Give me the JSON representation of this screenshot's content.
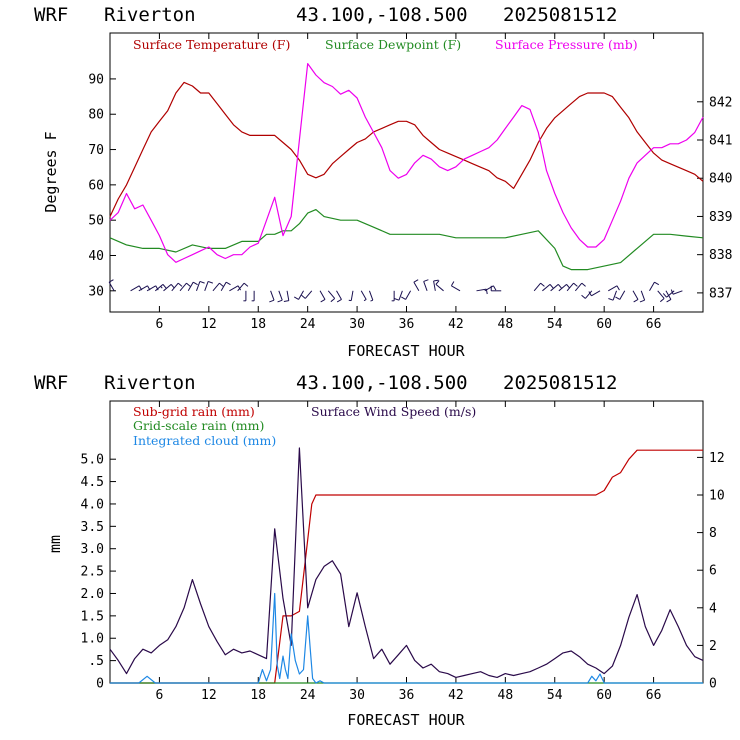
{
  "colors": {
    "temperature": "#b00000",
    "dewpoint": "#228b22",
    "pressure": "#ee00ee",
    "subgrid": "#c00000",
    "gridscale": "#228b22",
    "cloud": "#1e88e5",
    "wind": "#2a0a4a",
    "barb": "#1a1050"
  },
  "charts": {
    "top": {
      "model": "WRF",
      "station": "Riverton",
      "coords": "43.100,-108.500",
      "run": "2025081512",
      "legend": [
        "Surface Temperature (F)",
        "Surface Dewpoint (F)",
        "Surface Pressure (mb)"
      ],
      "ylabel": "Degrees F",
      "xlabel": "FORECAST HOUR"
    },
    "bottom": {
      "model": "WRF",
      "station": "Riverton",
      "coords": "43.100,-108.500",
      "run": "2025081512",
      "legend": [
        "Sub-grid rain (mm)",
        "Surface Wind Speed (m/s)",
        "Grid-scale rain (mm)",
        "Integrated cloud (mm)"
      ],
      "ylabel": "mm",
      "xlabel": "FORECAST HOUR"
    }
  },
  "chart_data": [
    {
      "type": "line",
      "xlabel": "FORECAST HOUR",
      "ylabel": "Degrees F",
      "xlim": [
        0,
        72
      ],
      "ylim_left": [
        24,
        103
      ],
      "ylim_right": [
        836.5,
        843.8
      ],
      "x_ticks": [
        6,
        12,
        18,
        24,
        30,
        36,
        42,
        48,
        54,
        60,
        66
      ],
      "y_ticks_left": [
        30,
        40,
        50,
        60,
        70,
        80,
        90
      ],
      "y_ticks_right": [
        837,
        838,
        839,
        840,
        841,
        842
      ],
      "grid": false,
      "legend_position": "top",
      "series": [
        {
          "name": "Surface Temperature (F)",
          "axis": "left",
          "x": [
            0,
            1,
            2,
            3,
            4,
            5,
            6,
            7,
            8,
            9,
            10,
            11,
            12,
            13,
            14,
            15,
            16,
            17,
            18,
            19,
            20,
            21,
            22,
            23,
            24,
            25,
            26,
            27,
            28,
            29,
            30,
            31,
            32,
            33,
            34,
            35,
            36,
            37,
            38,
            39,
            40,
            41,
            42,
            43,
            44,
            45,
            46,
            47,
            48,
            49,
            50,
            51,
            52,
            53,
            54,
            55,
            56,
            57,
            58,
            59,
            60,
            61,
            62,
            63,
            64,
            65,
            66,
            67,
            68,
            69,
            70,
            71,
            72
          ],
          "values": [
            51,
            56,
            60,
            65,
            70,
            75,
            78,
            81,
            86,
            89,
            88,
            86,
            86,
            83,
            80,
            77,
            75,
            74,
            74,
            74,
            74,
            72,
            70,
            67,
            63,
            62,
            63,
            66,
            68,
            70,
            72,
            73,
            75,
            76,
            77,
            78,
            78,
            77,
            74,
            72,
            70,
            69,
            68,
            67,
            66,
            65,
            64,
            62,
            61,
            59,
            63,
            67,
            72,
            76,
            79,
            81,
            83,
            85,
            86,
            86,
            86,
            85,
            82,
            79,
            75,
            72,
            69,
            67,
            66,
            65,
            64,
            63,
            61
          ]
        },
        {
          "name": "Surface Dewpoint (F)",
          "axis": "left",
          "x": [
            0,
            2,
            4,
            6,
            8,
            10,
            12,
            14,
            16,
            18,
            19,
            20,
            21,
            22,
            23,
            24,
            25,
            26,
            28,
            30,
            32,
            34,
            36,
            38,
            40,
            42,
            44,
            46,
            48,
            50,
            52,
            54,
            55,
            56,
            58,
            60,
            62,
            64,
            66,
            68,
            70,
            72
          ],
          "values": [
            45,
            43,
            42,
            42,
            41,
            43,
            42,
            42,
            44,
            44,
            46,
            46,
            47,
            47,
            49,
            52,
            53,
            51,
            50,
            50,
            48,
            46,
            46,
            46,
            46,
            45,
            45,
            45,
            45,
            46,
            47,
            42,
            37,
            36,
            36,
            37,
            38,
            42,
            46,
            46,
            45.5,
            45
          ]
        },
        {
          "name": "Surface Pressure (mb)",
          "axis": "right",
          "x": [
            0,
            1,
            2,
            3,
            4,
            5,
            6,
            7,
            8,
            9,
            10,
            11,
            12,
            13,
            14,
            15,
            16,
            17,
            18,
            19,
            20,
            21,
            22,
            23,
            24,
            25,
            26,
            27,
            28,
            29,
            30,
            31,
            32,
            33,
            34,
            35,
            36,
            37,
            38,
            39,
            40,
            41,
            42,
            43,
            44,
            45,
            46,
            47,
            48,
            49,
            50,
            51,
            52,
            53,
            54,
            55,
            56,
            57,
            58,
            59,
            60,
            61,
            62,
            63,
            64,
            65,
            66,
            67,
            68,
            69,
            70,
            71,
            72
          ],
          "values": [
            838.9,
            839.1,
            839.6,
            839.2,
            839.3,
            838.9,
            838.5,
            838.0,
            837.8,
            837.9,
            838.0,
            838.1,
            838.2,
            838.0,
            837.9,
            838.0,
            838.0,
            838.2,
            838.3,
            838.9,
            839.5,
            838.5,
            839.0,
            841.0,
            843.0,
            842.7,
            842.5,
            842.4,
            842.2,
            842.3,
            842.1,
            841.6,
            841.2,
            840.8,
            840.2,
            840.0,
            840.1,
            840.4,
            840.6,
            840.5,
            840.3,
            840.2,
            840.3,
            840.5,
            840.6,
            840.7,
            840.8,
            841.0,
            841.3,
            841.6,
            841.9,
            841.8,
            841.2,
            840.2,
            839.6,
            839.1,
            838.7,
            838.4,
            838.2,
            838.2,
            838.4,
            838.9,
            839.4,
            840.0,
            840.4,
            840.6,
            840.8,
            840.8,
            840.9,
            840.9,
            841.0,
            841.2,
            841.6
          ]
        }
      ]
    },
    {
      "type": "line",
      "xlabel": "FORECAST HOUR",
      "ylabel": "mm",
      "xlim": [
        0,
        72
      ],
      "ylim_left": [
        0,
        6.3
      ],
      "ylim_right": [
        0,
        15
      ],
      "x_ticks": [
        6,
        12,
        18,
        24,
        30,
        36,
        42,
        48,
        54,
        60,
        66
      ],
      "y_ticks_left": [
        0,
        0.5,
        1.0,
        1.5,
        2.0,
        2.5,
        3.0,
        3.5,
        4.0,
        4.5,
        5.0
      ],
      "y_tick_labels_left": [
        "0",
        ".5",
        "1.0",
        "1.5",
        "2.0",
        "2.5",
        "3.0",
        "3.5",
        "4.0",
        "4.5",
        "5.0"
      ],
      "y_ticks_right": [
        0,
        2,
        4,
        6,
        8,
        10,
        12
      ],
      "grid": false,
      "legend_position": "top",
      "series": [
        {
          "name": "Sub-grid rain (mm)",
          "axis": "left",
          "x": [
            0,
            20,
            21,
            22,
            23,
            24,
            24.5,
            25,
            58,
            59,
            60,
            61,
            62,
            63,
            64,
            72
          ],
          "values": [
            0,
            0,
            1.5,
            1.5,
            1.6,
            3.2,
            4.0,
            4.2,
            4.2,
            4.2,
            4.3,
            4.6,
            4.7,
            5.0,
            5.2,
            5.2
          ]
        },
        {
          "name": "Surface Wind Speed (m/s)",
          "axis": "right",
          "x": [
            0,
            1,
            2,
            3,
            4,
            5,
            6,
            7,
            8,
            9,
            10,
            11,
            12,
            13,
            14,
            15,
            16,
            17,
            18,
            19,
            20,
            21,
            22,
            23,
            24,
            25,
            26,
            27,
            28,
            29,
            30,
            31,
            32,
            33,
            34,
            35,
            36,
            37,
            38,
            39,
            40,
            41,
            42,
            43,
            44,
            45,
            46,
            47,
            48,
            49,
            50,
            51,
            52,
            53,
            54,
            55,
            56,
            57,
            58,
            59,
            60,
            61,
            62,
            63,
            64,
            65,
            66,
            67,
            68,
            69,
            70,
            71,
            72
          ],
          "values": [
            1.8,
            1.2,
            0.5,
            1.3,
            1.8,
            1.6,
            2.0,
            2.3,
            3.0,
            4.0,
            5.5,
            4.2,
            3.0,
            2.2,
            1.5,
            1.8,
            1.6,
            1.7,
            1.5,
            1.3,
            8.2,
            4.5,
            2.0,
            12.5,
            4.0,
            5.5,
            6.2,
            6.5,
            5.8,
            3.0,
            4.8,
            3.0,
            1.3,
            1.8,
            1.0,
            1.5,
            2.0,
            1.2,
            0.8,
            1.0,
            0.6,
            0.5,
            0.3,
            0.4,
            0.5,
            0.6,
            0.4,
            0.3,
            0.5,
            0.4,
            0.5,
            0.6,
            0.8,
            1.0,
            1.3,
            1.6,
            1.7,
            1.4,
            1.0,
            0.8,
            0.5,
            0.9,
            2.0,
            3.5,
            4.7,
            3.0,
            2.0,
            2.8,
            3.9,
            3.0,
            2.0,
            1.4,
            1.2
          ]
        },
        {
          "name": "Grid-scale rain (mm)",
          "axis": "left",
          "x": [
            0,
            72
          ],
          "values": [
            0,
            0
          ]
        },
        {
          "name": "Integrated cloud (mm)",
          "axis": "left",
          "x": [
            0,
            3.5,
            4.5,
            5.5,
            6.5,
            18,
            18.5,
            19,
            19.5,
            20,
            20.3,
            20.6,
            21,
            21.3,
            21.6,
            22,
            22.5,
            23,
            23.5,
            24,
            24.3,
            24.6,
            25,
            25.5,
            26,
            58,
            58.5,
            59,
            59.5,
            60,
            72
          ],
          "values": [
            0,
            0,
            0.15,
            0,
            0,
            0,
            0.3,
            0.05,
            0.3,
            2.0,
            0.4,
            0.1,
            0.6,
            0.3,
            0.1,
            1.1,
            0.5,
            0.2,
            0.3,
            1.5,
            0.8,
            0.1,
            0,
            0.05,
            0,
            0,
            0.15,
            0.05,
            0.2,
            0,
            0
          ]
        }
      ]
    }
  ],
  "wind_barbs": {
    "x": [
      0.5,
      2.5,
      3.5,
      4.5,
      5.5,
      6.5,
      7.5,
      8.5,
      9.5,
      10.5,
      11.5,
      12.5,
      13.5,
      14.5,
      15.5,
      16.5,
      17.5,
      19.5,
      20.5,
      21.5,
      23.5,
      24.5,
      25.5,
      26.5,
      27.5,
      29.5,
      30.5,
      31.5,
      34.5,
      35.5,
      36.5,
      37.5,
      38.5,
      39.5,
      40.5,
      42.5,
      44.5,
      45.5,
      47.5,
      51.5,
      52.5,
      53.5,
      54.5,
      55.5,
      56.5,
      58.5,
      59.5,
      60.5,
      61.5,
      62.5,
      63.5,
      64.5,
      65.5,
      66.5,
      67.5,
      68.5,
      69.5
    ],
    "direction_deg": [
      330,
      60,
      60,
      60,
      50,
      50,
      40,
      40,
      30,
      20,
      20,
      40,
      30,
      60,
      40,
      180,
      180,
      160,
      160,
      170,
      210,
      220,
      150,
      140,
      150,
      190,
      150,
      160,
      180,
      200,
      210,
      330,
      340,
      350,
      310,
      300,
      80,
      60,
      270,
      40,
      50,
      50,
      50,
      40,
      40,
      220,
      240,
      60,
      200,
      210,
      150,
      160,
      30,
      140,
      150,
      230,
      250
    ],
    "speed_kt": [
      10,
      10,
      10,
      10,
      15,
      10,
      10,
      10,
      10,
      10,
      10,
      10,
      10,
      10,
      10,
      5,
      5,
      10,
      10,
      10,
      10,
      10,
      10,
      10,
      10,
      5,
      5,
      5,
      5,
      10,
      10,
      10,
      10,
      10,
      10,
      10,
      10,
      10,
      10,
      10,
      10,
      10,
      10,
      10,
      10,
      10,
      10,
      10,
      10,
      10,
      10,
      10,
      10,
      10,
      10,
      10,
      10
    ]
  }
}
